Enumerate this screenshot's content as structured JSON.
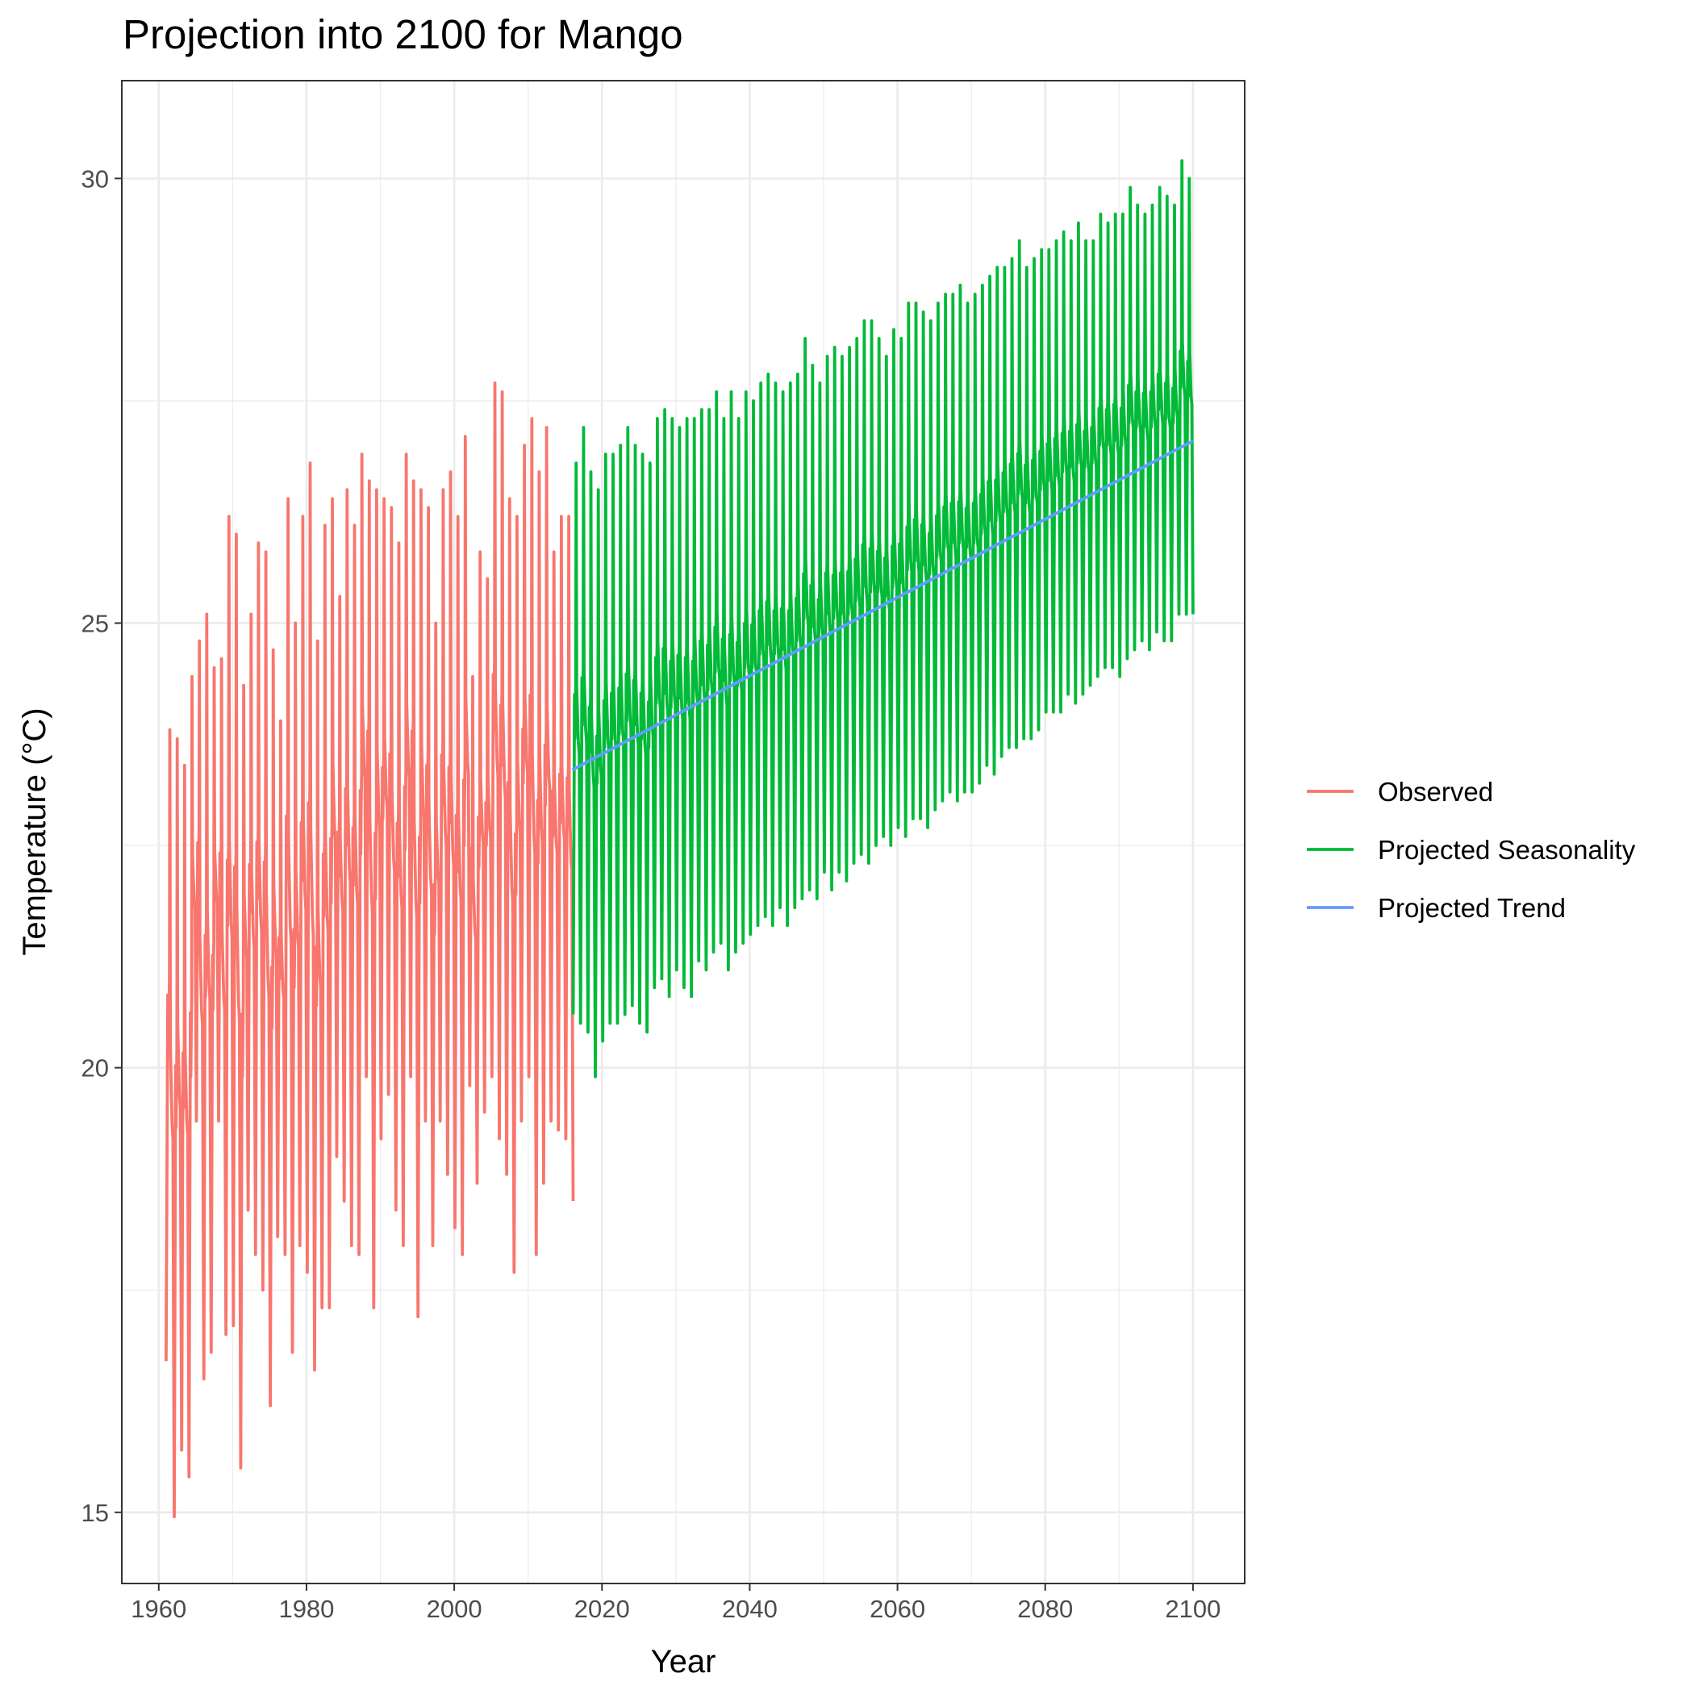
{
  "chart_data": {
    "type": "line",
    "title": "Projection into 2100 for Mango",
    "xlabel": "Year",
    "ylabel": "Temperature (°C)",
    "xlim": [
      1955,
      2107
    ],
    "ylim": [
      14.2,
      31.1
    ],
    "x_ticks": [
      1960,
      1980,
      2000,
      2020,
      2040,
      2060,
      2080,
      2100
    ],
    "y_ticks": [
      15,
      20,
      25,
      30
    ],
    "grid": true,
    "legend_position": "right",
    "series": [
      {
        "name": "Observed",
        "color": "#F8766D",
        "annual_peaks": [
          [
            1961.5,
            23.8
          ],
          [
            1962.5,
            23.7
          ],
          [
            1963.5,
            23.4
          ],
          [
            1964.5,
            24.4
          ],
          [
            1965.5,
            24.8
          ],
          [
            1966.5,
            25.1
          ],
          [
            1967.5,
            24.5
          ],
          [
            1968.5,
            24.6
          ],
          [
            1969.5,
            26.2
          ],
          [
            1970.5,
            26.0
          ],
          [
            1971.5,
            24.3
          ],
          [
            1972.5,
            25.1
          ],
          [
            1973.5,
            25.9
          ],
          [
            1974.5,
            25.8
          ],
          [
            1975.5,
            24.7
          ],
          [
            1976.5,
            23.9
          ],
          [
            1977.5,
            26.4
          ],
          [
            1978.5,
            25.0
          ],
          [
            1979.5,
            26.2
          ],
          [
            1980.5,
            26.8
          ],
          [
            1981.5,
            24.8
          ],
          [
            1982.5,
            26.1
          ],
          [
            1983.5,
            26.4
          ],
          [
            1984.5,
            25.3
          ],
          [
            1985.5,
            26.5
          ],
          [
            1986.5,
            26.1
          ],
          [
            1987.5,
            26.9
          ],
          [
            1988.5,
            26.6
          ],
          [
            1989.5,
            26.5
          ],
          [
            1990.5,
            26.4
          ],
          [
            1991.5,
            26.3
          ],
          [
            1992.5,
            25.9
          ],
          [
            1993.5,
            26.9
          ],
          [
            1994.5,
            26.6
          ],
          [
            1995.5,
            26.5
          ],
          [
            1996.5,
            26.3
          ],
          [
            1997.5,
            25.0
          ],
          [
            1998.5,
            26.5
          ],
          [
            1999.5,
            26.7
          ],
          [
            2000.5,
            26.2
          ],
          [
            2001.5,
            27.1
          ],
          [
            2002.5,
            24.4
          ],
          [
            2003.5,
            25.8
          ],
          [
            2004.5,
            25.5
          ],
          [
            2005.5,
            27.7
          ],
          [
            2006.5,
            27.6
          ],
          [
            2007.5,
            26.4
          ],
          [
            2008.5,
            26.2
          ],
          [
            2009.5,
            27.0
          ],
          [
            2010.5,
            27.3
          ],
          [
            2011.5,
            26.7
          ],
          [
            2012.5,
            27.2
          ],
          [
            2013.5,
            25.8
          ],
          [
            2014.5,
            26.2
          ],
          [
            2015.5,
            26.2
          ]
        ],
        "annual_troughs": [
          [
            1961.0,
            16.7
          ],
          [
            1962.1,
            14.95
          ],
          [
            1963.1,
            15.7
          ],
          [
            1964.1,
            15.4
          ],
          [
            1965.1,
            19.4
          ],
          [
            1966.1,
            16.5
          ],
          [
            1967.1,
            16.8
          ],
          [
            1968.1,
            19.4
          ],
          [
            1969.1,
            17.0
          ],
          [
            1970.1,
            17.1
          ],
          [
            1971.1,
            15.5
          ],
          [
            1972.1,
            18.4
          ],
          [
            1973.1,
            17.9
          ],
          [
            1974.1,
            17.5
          ],
          [
            1975.1,
            16.2
          ],
          [
            1976.1,
            18.1
          ],
          [
            1977.1,
            17.9
          ],
          [
            1978.1,
            16.8
          ],
          [
            1979.1,
            18.0
          ],
          [
            1980.1,
            17.7
          ],
          [
            1981.1,
            16.6
          ],
          [
            1982.1,
            17.3
          ],
          [
            1983.1,
            17.3
          ],
          [
            1984.1,
            19.0
          ],
          [
            1985.1,
            18.5
          ],
          [
            1986.1,
            18.0
          ],
          [
            1987.1,
            17.9
          ],
          [
            1988.1,
            19.9
          ],
          [
            1989.1,
            17.3
          ],
          [
            1990.1,
            19.2
          ],
          [
            1991.1,
            19.7
          ],
          [
            1992.1,
            18.4
          ],
          [
            1993.1,
            18.0
          ],
          [
            1994.1,
            19.9
          ],
          [
            1995.1,
            17.2
          ],
          [
            1996.1,
            19.4
          ],
          [
            1997.1,
            18.0
          ],
          [
            1998.1,
            19.4
          ],
          [
            1999.1,
            18.8
          ],
          [
            2000.1,
            18.2
          ],
          [
            2001.1,
            17.9
          ],
          [
            2002.1,
            19.8
          ],
          [
            2003.1,
            18.7
          ],
          [
            2004.1,
            19.5
          ],
          [
            2005.1,
            19.9
          ],
          [
            2006.1,
            19.2
          ],
          [
            2007.1,
            18.8
          ],
          [
            2008.1,
            17.7
          ],
          [
            2009.1,
            19.4
          ],
          [
            2010.1,
            19.9
          ],
          [
            2011.1,
            17.9
          ],
          [
            2012.1,
            18.7
          ],
          [
            2013.1,
            19.4
          ],
          [
            2014.1,
            19.3
          ],
          [
            2015.1,
            19.2
          ],
          [
            2016.1,
            18.5
          ]
        ]
      },
      {
        "name": "Projected Seasonality",
        "color": "#00BA38",
        "annual_peaks": [
          [
            2016.5,
            26.8
          ],
          [
            2017.5,
            27.2
          ],
          [
            2018.5,
            26.7
          ],
          [
            2019.5,
            26.5
          ],
          [
            2020.5,
            26.9
          ],
          [
            2021.5,
            26.9
          ],
          [
            2022.5,
            27.0
          ],
          [
            2023.5,
            27.2
          ],
          [
            2024.5,
            27.0
          ],
          [
            2025.5,
            26.9
          ],
          [
            2026.5,
            26.8
          ],
          [
            2027.5,
            27.3
          ],
          [
            2028.5,
            27.4
          ],
          [
            2029.5,
            27.3
          ],
          [
            2030.5,
            27.2
          ],
          [
            2031.5,
            27.3
          ],
          [
            2032.5,
            27.3
          ],
          [
            2033.5,
            27.4
          ],
          [
            2034.5,
            27.4
          ],
          [
            2035.5,
            27.6
          ],
          [
            2036.5,
            27.3
          ],
          [
            2037.5,
            27.6
          ],
          [
            2038.5,
            27.3
          ],
          [
            2039.5,
            27.6
          ],
          [
            2040.5,
            27.5
          ],
          [
            2041.5,
            27.7
          ],
          [
            2042.5,
            27.8
          ],
          [
            2043.5,
            27.7
          ],
          [
            2044.5,
            27.6
          ],
          [
            2045.5,
            27.7
          ],
          [
            2046.5,
            27.8
          ],
          [
            2047.5,
            28.2
          ],
          [
            2048.5,
            27.9
          ],
          [
            2049.5,
            27.7
          ],
          [
            2050.5,
            28.0
          ],
          [
            2051.5,
            28.1
          ],
          [
            2052.5,
            28.0
          ],
          [
            2053.5,
            28.1
          ],
          [
            2054.5,
            28.2
          ],
          [
            2055.5,
            28.4
          ],
          [
            2056.5,
            28.4
          ],
          [
            2057.5,
            28.2
          ],
          [
            2058.5,
            28.0
          ],
          [
            2059.5,
            28.3
          ],
          [
            2060.5,
            28.2
          ],
          [
            2061.5,
            28.6
          ],
          [
            2062.5,
            28.6
          ],
          [
            2063.5,
            28.5
          ],
          [
            2064.5,
            28.4
          ],
          [
            2065.5,
            28.6
          ],
          [
            2066.5,
            28.7
          ],
          [
            2067.5,
            28.7
          ],
          [
            2068.5,
            28.8
          ],
          [
            2069.5,
            28.6
          ],
          [
            2070.5,
            28.7
          ],
          [
            2071.5,
            28.8
          ],
          [
            2072.5,
            28.9
          ],
          [
            2073.5,
            29.0
          ],
          [
            2074.5,
            29.0
          ],
          [
            2075.5,
            29.1
          ],
          [
            2076.5,
            29.3
          ],
          [
            2077.5,
            29.0
          ],
          [
            2078.5,
            29.1
          ],
          [
            2079.5,
            29.2
          ],
          [
            2080.5,
            29.2
          ],
          [
            2081.5,
            29.3
          ],
          [
            2082.5,
            29.4
          ],
          [
            2083.5,
            29.3
          ],
          [
            2084.5,
            29.5
          ],
          [
            2085.5,
            29.3
          ],
          [
            2086.5,
            29.3
          ],
          [
            2087.5,
            29.6
          ],
          [
            2088.5,
            29.5
          ],
          [
            2089.5,
            29.6
          ],
          [
            2090.5,
            29.6
          ],
          [
            2091.5,
            29.9
          ],
          [
            2092.5,
            29.7
          ],
          [
            2093.5,
            29.6
          ],
          [
            2094.5,
            29.7
          ],
          [
            2095.5,
            29.9
          ],
          [
            2096.5,
            29.8
          ],
          [
            2097.5,
            29.7
          ],
          [
            2098.5,
            30.2
          ],
          [
            2099.5,
            30.0
          ]
        ],
        "annual_troughs": [
          [
            2016.1,
            20.6
          ],
          [
            2017.1,
            20.5
          ],
          [
            2018.1,
            20.4
          ],
          [
            2019.1,
            19.9
          ],
          [
            2020.1,
            20.3
          ],
          [
            2021.1,
            20.5
          ],
          [
            2022.1,
            20.5
          ],
          [
            2023.1,
            20.6
          ],
          [
            2024.1,
            20.7
          ],
          [
            2025.1,
            20.5
          ],
          [
            2026.1,
            20.4
          ],
          [
            2027.1,
            20.9
          ],
          [
            2028.1,
            21.0
          ],
          [
            2029.1,
            20.8
          ],
          [
            2030.1,
            21.1
          ],
          [
            2031.1,
            20.9
          ],
          [
            2032.1,
            20.8
          ],
          [
            2033.1,
            21.2
          ],
          [
            2034.1,
            21.1
          ],
          [
            2035.1,
            21.3
          ],
          [
            2036.1,
            21.4
          ],
          [
            2037.1,
            21.1
          ],
          [
            2038.1,
            21.3
          ],
          [
            2039.1,
            21.4
          ],
          [
            2040.1,
            21.5
          ],
          [
            2041.1,
            21.6
          ],
          [
            2042.1,
            21.7
          ],
          [
            2043.1,
            21.6
          ],
          [
            2044.1,
            21.8
          ],
          [
            2045.1,
            21.6
          ],
          [
            2046.1,
            21.8
          ],
          [
            2047.1,
            21.9
          ],
          [
            2048.1,
            22.0
          ],
          [
            2049.1,
            21.9
          ],
          [
            2050.1,
            22.2
          ],
          [
            2051.1,
            22.0
          ],
          [
            2052.1,
            22.2
          ],
          [
            2053.1,
            22.1
          ],
          [
            2054.1,
            22.3
          ],
          [
            2055.1,
            22.4
          ],
          [
            2056.1,
            22.3
          ],
          [
            2057.1,
            22.5
          ],
          [
            2058.1,
            22.6
          ],
          [
            2059.1,
            22.5
          ],
          [
            2060.1,
            22.7
          ],
          [
            2061.1,
            22.6
          ],
          [
            2062.1,
            22.8
          ],
          [
            2063.1,
            22.8
          ],
          [
            2064.1,
            22.7
          ],
          [
            2065.1,
            22.9
          ],
          [
            2066.1,
            23.0
          ],
          [
            2067.1,
            23.1
          ],
          [
            2068.1,
            23.0
          ],
          [
            2069.1,
            23.1
          ],
          [
            2070.1,
            23.1
          ],
          [
            2071.1,
            23.2
          ],
          [
            2072.1,
            23.4
          ],
          [
            2073.1,
            23.3
          ],
          [
            2074.1,
            23.5
          ],
          [
            2075.1,
            23.6
          ],
          [
            2076.1,
            23.6
          ],
          [
            2077.1,
            23.7
          ],
          [
            2078.1,
            23.7
          ],
          [
            2079.1,
            23.8
          ],
          [
            2080.1,
            24.0
          ],
          [
            2081.1,
            24.0
          ],
          [
            2082.1,
            24.0
          ],
          [
            2083.1,
            24.2
          ],
          [
            2084.1,
            24.1
          ],
          [
            2085.1,
            24.2
          ],
          [
            2086.1,
            24.3
          ],
          [
            2087.1,
            24.4
          ],
          [
            2088.1,
            24.5
          ],
          [
            2089.1,
            24.5
          ],
          [
            2090.1,
            24.4
          ],
          [
            2091.1,
            24.6
          ],
          [
            2092.1,
            24.7
          ],
          [
            2093.1,
            24.8
          ],
          [
            2094.1,
            24.7
          ],
          [
            2095.1,
            24.9
          ],
          [
            2096.1,
            24.8
          ],
          [
            2097.1,
            24.8
          ],
          [
            2098.1,
            25.1
          ],
          [
            2099.1,
            25.1
          ],
          [
            2100.0,
            25.1
          ]
        ]
      },
      {
        "name": "Projected Trend",
        "color": "#619CFF",
        "x": [
          2016,
          2100
        ],
        "y": [
          23.35,
          27.05
        ]
      }
    ]
  }
}
